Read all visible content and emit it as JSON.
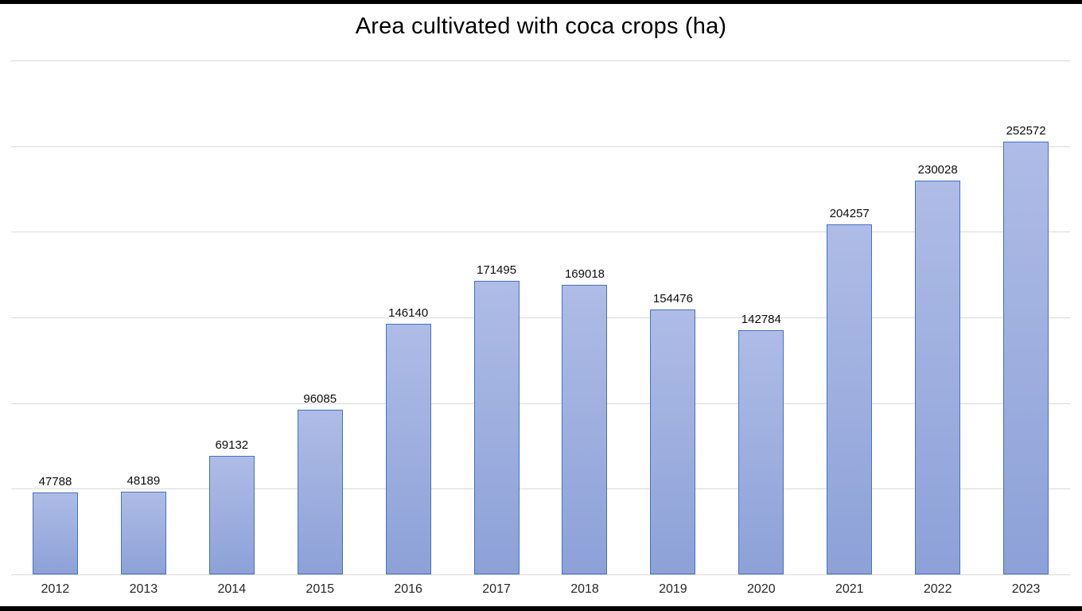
{
  "chart_data": {
    "type": "bar",
    "title": "Area cultivated with coca crops (ha)",
    "categories": [
      "2012",
      "2013",
      "2014",
      "2015",
      "2016",
      "2017",
      "2018",
      "2019",
      "2020",
      "2021",
      "2022",
      "2023"
    ],
    "values": [
      47788,
      48189,
      69132,
      96085,
      146140,
      171495,
      169018,
      154476,
      142784,
      204257,
      230028,
      252572
    ],
    "xlabel": "",
    "ylabel": "",
    "ylim": [
      0,
      300000
    ],
    "gridline_step": 50000,
    "grid": true,
    "legend": false,
    "data_labels": true,
    "y_axis_labels_visible": false
  },
  "colors": {
    "background": "#ffffff",
    "letterbox": "#000000",
    "title": "#000000",
    "data_label": "#0d0d0d",
    "tick_label": "#262626",
    "bar_fill_top": "#aebce6",
    "bar_fill_bottom": "#8da1d8",
    "bar_border": "#4472c4",
    "gridline": "#d9d9d9",
    "axis_line": "#d9d9d9"
  }
}
